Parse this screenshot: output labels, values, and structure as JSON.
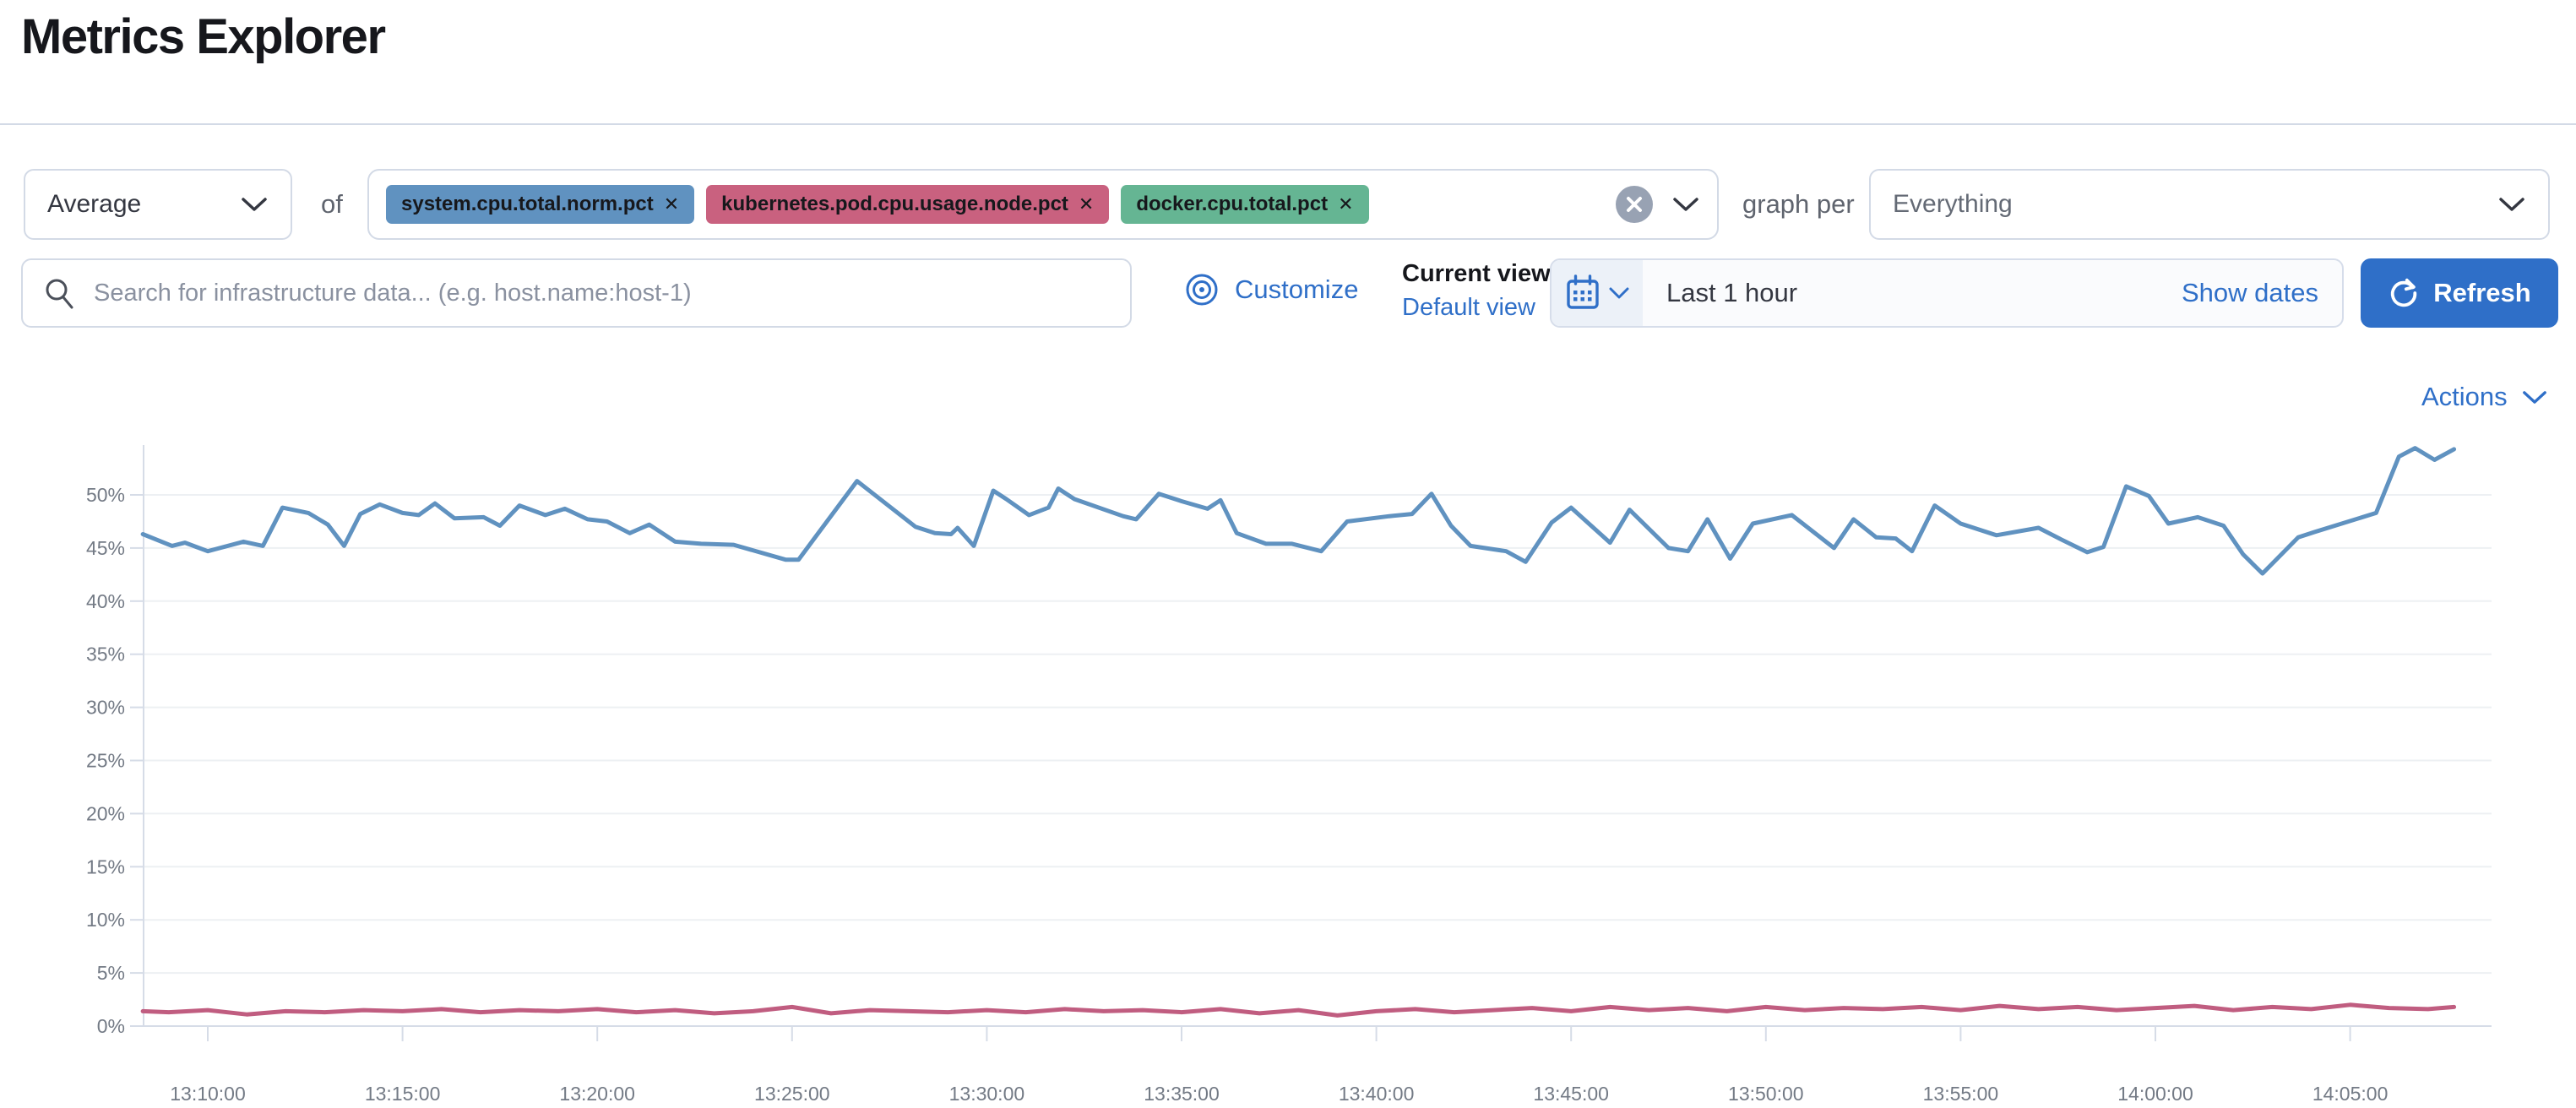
{
  "page": {
    "title": "Metrics Explorer"
  },
  "toolbar": {
    "aggregation": {
      "value": "Average"
    },
    "of_label": "of",
    "metrics": [
      {
        "label": "system.cpu.total.norm.pct",
        "remove_label": "✕",
        "color": "#6092C0"
      },
      {
        "label": "kubernetes.pod.cpu.usage.node.pct",
        "remove_label": "✕",
        "color": "#C9617F"
      },
      {
        "label": "docker.cpu.total.pct",
        "remove_label": "✕",
        "color": "#65B593"
      }
    ],
    "graph_per_label": "graph per",
    "group_by": {
      "value": "Everything"
    }
  },
  "search": {
    "placeholder": "Search for infrastructure data... (e.g. host.name:host-1)"
  },
  "view_controls": {
    "customize_label": "Customize",
    "current_view_label": "Current view",
    "default_view_label": "Default view"
  },
  "time_picker": {
    "value": "Last 1 hour",
    "show_dates_label": "Show dates",
    "refresh_label": "Refresh"
  },
  "actions_label": "Actions",
  "colors": {
    "primary": "#2F6FC8",
    "border": "#D3DAE6",
    "axis": "#D6DCE7",
    "grid": "#EDF0F3",
    "tick_text": "#737A85"
  },
  "chart_data": {
    "type": "line",
    "title": "",
    "grid": "horizontal",
    "legend": "none",
    "y_axis": {
      "unit": "%",
      "min": 0,
      "max": 55,
      "tick_step": 5,
      "tick_labels": [
        "0%",
        "5%",
        "10%",
        "15%",
        "20%",
        "25%",
        "30%",
        "35%",
        "40%",
        "45%",
        "50%"
      ]
    },
    "x_axis": {
      "tick_interval": "5 minutes",
      "tick_labels": [
        "13:10:00",
        "13:15:00",
        "13:20:00",
        "13:25:00",
        "13:30:00",
        "13:35:00",
        "13:40:00",
        "13:45:00",
        "13:50:00",
        "13:55:00",
        "14:00:00",
        "14:05:00"
      ]
    },
    "series": [
      {
        "name": "system.cpu.total.norm.pct (avg)",
        "color": "#6092C0",
        "points": [
          [
            "13:08:20",
            46.3
          ],
          [
            "13:09:05",
            45.2
          ],
          [
            "13:09:25",
            45.5
          ],
          [
            "13:10:00",
            44.7
          ],
          [
            "13:10:55",
            45.6
          ],
          [
            "13:11:25",
            45.2
          ],
          [
            "13:11:55",
            48.8
          ],
          [
            "13:12:35",
            48.3
          ],
          [
            "13:13:05",
            47.2
          ],
          [
            "13:13:30",
            45.2
          ],
          [
            "13:13:55",
            48.2
          ],
          [
            "13:14:25",
            49.1
          ],
          [
            "13:15:00",
            48.3
          ],
          [
            "13:15:25",
            48.1
          ],
          [
            "13:15:50",
            49.2
          ],
          [
            "13:16:20",
            47.8
          ],
          [
            "13:17:05",
            47.9
          ],
          [
            "13:17:30",
            47.1
          ],
          [
            "13:18:00",
            49.0
          ],
          [
            "13:18:40",
            48.1
          ],
          [
            "13:19:10",
            48.7
          ],
          [
            "13:19:45",
            47.7
          ],
          [
            "13:20:15",
            47.5
          ],
          [
            "13:20:50",
            46.4
          ],
          [
            "13:21:20",
            47.2
          ],
          [
            "13:22:00",
            45.6
          ],
          [
            "13:22:40",
            45.4
          ],
          [
            "13:23:30",
            45.3
          ],
          [
            "13:24:50",
            43.9
          ],
          [
            "13:25:10",
            43.9
          ],
          [
            "13:26:40",
            51.3
          ],
          [
            "13:28:10",
            47.0
          ],
          [
            "13:28:40",
            46.4
          ],
          [
            "13:29:05",
            46.3
          ],
          [
            "13:29:15",
            46.9
          ],
          [
            "13:29:40",
            45.2
          ],
          [
            "13:30:10",
            50.4
          ],
          [
            "13:30:30",
            49.6
          ],
          [
            "13:31:05",
            48.1
          ],
          [
            "13:31:35",
            48.8
          ],
          [
            "13:31:50",
            50.6
          ],
          [
            "13:32:15",
            49.6
          ],
          [
            "13:33:30",
            48.0
          ],
          [
            "13:33:50",
            47.7
          ],
          [
            "13:34:25",
            50.1
          ],
          [
            "13:35:00",
            49.4
          ],
          [
            "13:35:40",
            48.7
          ],
          [
            "13:36:00",
            49.5
          ],
          [
            "13:36:25",
            46.4
          ],
          [
            "13:37:10",
            45.4
          ],
          [
            "13:37:50",
            45.4
          ],
          [
            "13:38:35",
            44.7
          ],
          [
            "13:39:15",
            47.5
          ],
          [
            "13:40:20",
            48.0
          ],
          [
            "13:40:55",
            48.2
          ],
          [
            "13:41:25",
            50.1
          ],
          [
            "13:41:55",
            47.1
          ],
          [
            "13:42:25",
            45.2
          ],
          [
            "13:43:20",
            44.7
          ],
          [
            "13:43:50",
            43.7
          ],
          [
            "13:44:30",
            47.4
          ],
          [
            "13:45:00",
            48.8
          ],
          [
            "13:46:00",
            45.5
          ],
          [
            "13:46:30",
            48.6
          ],
          [
            "13:47:30",
            45.0
          ],
          [
            "13:48:00",
            44.7
          ],
          [
            "13:48:30",
            47.7
          ],
          [
            "13:49:05",
            44.0
          ],
          [
            "13:49:40",
            47.3
          ],
          [
            "13:50:40",
            48.1
          ],
          [
            "13:51:45",
            45.0
          ],
          [
            "13:52:15",
            47.7
          ],
          [
            "13:52:50",
            46.0
          ],
          [
            "13:53:20",
            45.9
          ],
          [
            "13:53:45",
            44.7
          ],
          [
            "13:54:20",
            49.0
          ],
          [
            "13:55:00",
            47.3
          ],
          [
            "13:55:55",
            46.2
          ],
          [
            "13:57:00",
            46.9
          ],
          [
            "13:57:35",
            45.8
          ],
          [
            "13:58:15",
            44.6
          ],
          [
            "13:58:40",
            45.1
          ],
          [
            "13:59:15",
            50.8
          ],
          [
            "13:59:50",
            49.9
          ],
          [
            "14:00:20",
            47.3
          ],
          [
            "14:01:05",
            47.9
          ],
          [
            "14:01:45",
            47.1
          ],
          [
            "14:02:15",
            44.4
          ],
          [
            "14:02:45",
            42.6
          ],
          [
            "14:03:40",
            46.0
          ],
          [
            "14:04:05",
            46.5
          ],
          [
            "14:05:40",
            48.3
          ],
          [
            "14:06:15",
            53.6
          ],
          [
            "14:06:40",
            54.4
          ],
          [
            "14:07:10",
            53.3
          ],
          [
            "14:07:40",
            54.3
          ]
        ]
      },
      {
        "name": "kubernetes.pod.cpu.usage.node.pct (avg)",
        "color": "#C05D80",
        "points": [
          [
            "13:08:20",
            1.4
          ],
          [
            "13:09:00",
            1.3
          ],
          [
            "13:10:00",
            1.5
          ],
          [
            "13:11:00",
            1.1
          ],
          [
            "13:12:00",
            1.4
          ],
          [
            "13:13:00",
            1.3
          ],
          [
            "13:14:00",
            1.5
          ],
          [
            "13:15:00",
            1.4
          ],
          [
            "13:16:00",
            1.6
          ],
          [
            "13:17:00",
            1.3
          ],
          [
            "13:18:00",
            1.5
          ],
          [
            "13:19:00",
            1.4
          ],
          [
            "13:20:00",
            1.6
          ],
          [
            "13:21:00",
            1.3
          ],
          [
            "13:22:00",
            1.5
          ],
          [
            "13:23:00",
            1.2
          ],
          [
            "13:24:00",
            1.4
          ],
          [
            "13:25:00",
            1.8
          ],
          [
            "13:26:00",
            1.2
          ],
          [
            "13:27:00",
            1.5
          ],
          [
            "13:28:00",
            1.4
          ],
          [
            "13:29:00",
            1.3
          ],
          [
            "13:30:00",
            1.5
          ],
          [
            "13:31:00",
            1.3
          ],
          [
            "13:32:00",
            1.6
          ],
          [
            "13:33:00",
            1.4
          ],
          [
            "13:34:00",
            1.5
          ],
          [
            "13:35:00",
            1.3
          ],
          [
            "13:36:00",
            1.6
          ],
          [
            "13:37:00",
            1.2
          ],
          [
            "13:38:00",
            1.5
          ],
          [
            "13:39:00",
            1.0
          ],
          [
            "13:40:00",
            1.4
          ],
          [
            "13:41:00",
            1.6
          ],
          [
            "13:42:00",
            1.3
          ],
          [
            "13:43:00",
            1.5
          ],
          [
            "13:44:00",
            1.7
          ],
          [
            "13:45:00",
            1.4
          ],
          [
            "13:46:00",
            1.8
          ],
          [
            "13:47:00",
            1.5
          ],
          [
            "13:48:00",
            1.7
          ],
          [
            "13:49:00",
            1.4
          ],
          [
            "13:50:00",
            1.8
          ],
          [
            "13:51:00",
            1.5
          ],
          [
            "13:52:00",
            1.7
          ],
          [
            "13:53:00",
            1.6
          ],
          [
            "13:54:00",
            1.8
          ],
          [
            "13:55:00",
            1.5
          ],
          [
            "13:56:00",
            1.9
          ],
          [
            "13:57:00",
            1.6
          ],
          [
            "13:58:00",
            1.8
          ],
          [
            "13:59:00",
            1.5
          ],
          [
            "14:00:00",
            1.7
          ],
          [
            "14:01:00",
            1.9
          ],
          [
            "14:02:00",
            1.5
          ],
          [
            "14:03:00",
            1.8
          ],
          [
            "14:04:00",
            1.6
          ],
          [
            "14:05:00",
            2.0
          ],
          [
            "14:06:00",
            1.7
          ],
          [
            "14:07:00",
            1.6
          ],
          [
            "14:07:40",
            1.8
          ]
        ]
      }
    ]
  }
}
